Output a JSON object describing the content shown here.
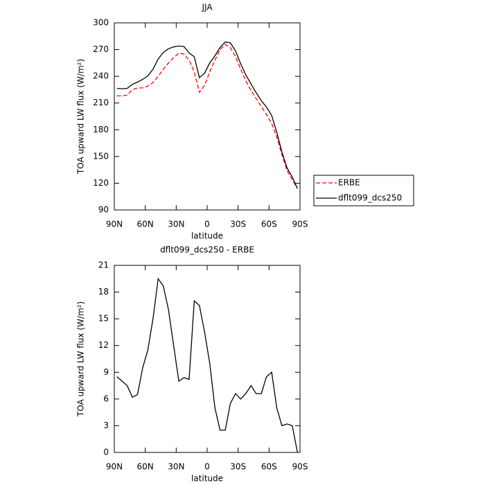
{
  "chart_data": [
    {
      "type": "line",
      "title": "JJA",
      "xlabel": "latitude",
      "ylabel": "TOA upward LW flux (W/m²)",
      "x": [
        87.5,
        82.5,
        77.5,
        72.5,
        67.5,
        62.5,
        57.5,
        52.5,
        47.5,
        42.5,
        37.5,
        32.5,
        27.5,
        22.5,
        17.5,
        12.5,
        7.5,
        2.5,
        -2.5,
        -7.5,
        -12.5,
        -17.5,
        -22.5,
        -27.5,
        -32.5,
        -37.5,
        -42.5,
        -47.5,
        -52.5,
        -57.5,
        -62.5,
        -67.5,
        -72.5,
        -77.5,
        -82.5,
        -87.5
      ],
      "series": [
        {
          "name": "ERBE",
          "color": "#ff0000",
          "dash": true,
          "values": [
            218,
            218,
            219,
            225,
            227,
            227,
            229,
            233,
            240,
            248,
            255,
            261,
            266,
            265,
            258,
            245,
            222,
            230,
            245,
            258,
            270,
            276,
            272,
            262,
            248,
            235,
            224,
            215,
            206,
            197,
            187,
            172,
            152,
            134,
            124,
            114
          ]
        },
        {
          "name": "dflt099_dcs250",
          "color": "#000000",
          "dash": false,
          "values": [
            226.5,
            226,
            226.5,
            231,
            233.5,
            236.5,
            240.5,
            248,
            259.5,
            266.7,
            271,
            273,
            274,
            273.4,
            266.2,
            262,
            238.5,
            243.5,
            255,
            263,
            272.5,
            278.5,
            277.5,
            268.6,
            254,
            241.6,
            231.5,
            221.6,
            212.6,
            205.5,
            196,
            177,
            155,
            137,
            127,
            114
          ]
        }
      ],
      "xlim": [
        90,
        -90
      ],
      "xticks": [
        {
          "value": 90,
          "label": "90N"
        },
        {
          "value": 60,
          "label": "60N"
        },
        {
          "value": 30,
          "label": "30N"
        },
        0,
        {
          "value": -30,
          "label": "30S"
        },
        {
          "value": -60,
          "label": "60S"
        },
        {
          "value": -90,
          "label": "90S"
        }
      ],
      "ylim": [
        90,
        300
      ],
      "yticks": [
        90,
        120,
        150,
        180,
        210,
        240,
        270,
        300
      ],
      "legend": "right"
    },
    {
      "type": "line",
      "title": "dflt099_dcs250 - ERBE",
      "xlabel": "latitude",
      "ylabel": "TOA upward LW flux (W/m²)",
      "x": [
        87.5,
        82.5,
        77.5,
        72.5,
        67.5,
        62.5,
        57.5,
        52.5,
        47.5,
        42.5,
        37.5,
        32.5,
        27.5,
        22.5,
        17.5,
        12.5,
        7.5,
        2.5,
        -2.5,
        -7.5,
        -12.5,
        -17.5,
        -22.5,
        -27.5,
        -32.5,
        -37.5,
        -42.5,
        -47.5,
        -52.5,
        -57.5,
        -62.5,
        -67.5,
        -72.5,
        -77.5,
        -82.5,
        -87.5
      ],
      "series": [
        {
          "color": "#000000",
          "dash": false,
          "values": [
            8.5,
            8,
            7.5,
            6.2,
            6.5,
            9.5,
            11.5,
            15,
            19.5,
            18.7,
            16,
            12,
            8,
            8.4,
            8.2,
            17,
            16.5,
            13.5,
            10,
            5,
            2.5,
            2.5,
            5.5,
            6.6,
            6,
            6.6,
            7.5,
            6.6,
            6.6,
            8.5,
            9,
            5,
            3,
            3.2,
            3,
            0
          ]
        }
      ],
      "xlim": [
        90,
        -90
      ],
      "xticks": [
        {
          "value": 90,
          "label": "90N"
        },
        {
          "value": 60,
          "label": "60N"
        },
        {
          "value": 30,
          "label": "30N"
        },
        0,
        {
          "value": -30,
          "label": "30S"
        },
        {
          "value": -60,
          "label": "60S"
        },
        {
          "value": -90,
          "label": "90S"
        }
      ],
      "ylim": [
        0,
        21
      ],
      "yticks": [
        0,
        3,
        6,
        9,
        12,
        15,
        18,
        21
      ]
    }
  ]
}
